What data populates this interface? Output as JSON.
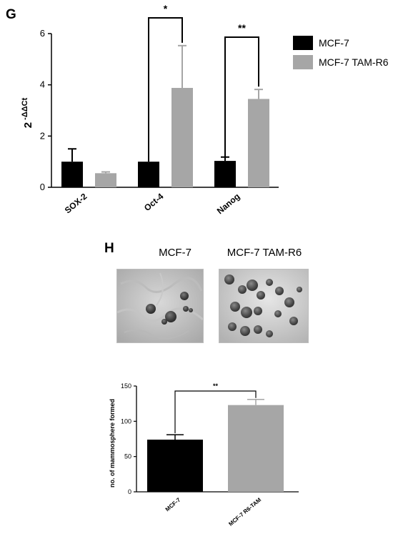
{
  "panels": {
    "g_letter": "G",
    "h_letter": "H"
  },
  "micrographs": [
    {
      "label": "MCF-7"
    },
    {
      "label": "MCF-7 TAM-R6"
    }
  ],
  "colors": {
    "mcf7": "#000000",
    "tamr6": "#a6a6a6",
    "axis": "#000000"
  },
  "chart_data": [
    {
      "type": "bar",
      "ylabel_main": "2",
      "ylabel_sup": "-ΔΔCt",
      "xlabel": "",
      "categories": [
        "SOX-2",
        "Oct-4",
        "Nanog"
      ],
      "ylim": [
        0,
        6
      ],
      "yticks": [
        0,
        2,
        4,
        6
      ],
      "series": [
        {
          "name": "MCF-7",
          "values": [
            1.0,
            1.0,
            1.03
          ],
          "errors": [
            0.5,
            0.0,
            0.15
          ]
        },
        {
          "name": "MCF-7 TAM-R6",
          "values": [
            0.55,
            3.88,
            3.45
          ],
          "errors": [
            0.05,
            1.65,
            0.37
          ]
        }
      ],
      "significance": [
        {
          "category": "Oct-4",
          "label": "*"
        },
        {
          "category": "Nanog",
          "label": "**"
        }
      ],
      "legend": {
        "placement": "top-right"
      },
      "grid": false
    },
    {
      "type": "bar",
      "ylabel": "no. of mammosphere formed",
      "xlabel": "",
      "categories": [
        "MCF-7",
        "MCF-7 R6-TAM"
      ],
      "values": [
        74,
        123
      ],
      "errors": [
        7,
        8
      ],
      "ylim": [
        0,
        150
      ],
      "yticks": [
        0,
        50,
        100,
        150
      ],
      "significance": [
        {
          "between": [
            "MCF-7",
            "MCF-7 R6-TAM"
          ],
          "label": "**"
        }
      ],
      "grid": false
    }
  ]
}
